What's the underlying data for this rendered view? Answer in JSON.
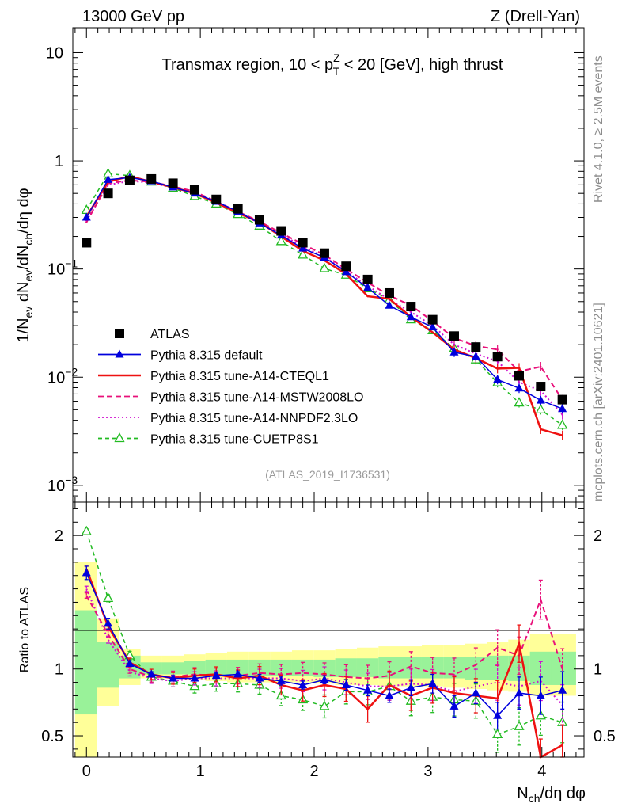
{
  "header": {
    "left": "13000 GeV pp",
    "right": "Z (Drell-Yan)"
  },
  "side_labels": {
    "rivet": "Rivet 4.1.0, ≥ 2.5M events",
    "mcplots": "mcplots.cern.ch [arXiv:2401.10621]"
  },
  "reference": "(ATLAS_2019_I1736531)",
  "colors": {
    "atlas": "#000000",
    "default": "#0000dd",
    "cteql1": "#ee1111",
    "mstw": "#e8107a",
    "nnpdf": "#d010d0",
    "cuetp8s1": "#22bb22",
    "band_inner": "#99f299",
    "band_outer": "#ffff99"
  },
  "chart_data": [
    {
      "panel": "main",
      "type": "line",
      "title": "Transmax region, 10 < p_T^Z < 20 [GeV], high thrust",
      "title_parts": {
        "pre": "Transmax region, 10 < p",
        "sup": "Z",
        "sub": "T",
        "post": " < 20 [GeV], high thrust"
      },
      "xlabel": "N_ch/dη dφ",
      "ylabel": "1/N_ev dN_ev/dN_ch/dη dφ",
      "yscale": "log",
      "xlim": [
        -0.12,
        4.37
      ],
      "ylim": [
        0.0007,
        17
      ],
      "x_ticks": [
        "0",
        "1",
        "2",
        "3",
        "4"
      ],
      "y_ticks": [
        {
          "value": 10,
          "mantissa": "10",
          "exp": ""
        },
        {
          "value": 1,
          "mantissa": "1",
          "exp": ""
        },
        {
          "value": 0.1,
          "mantissa": "10",
          "exp": "−1"
        },
        {
          "value": 0.01,
          "mantissa": "10",
          "exp": "−2"
        },
        {
          "value": 0.001,
          "mantissa": "10",
          "exp": "−3"
        }
      ],
      "x": [
        0,
        0.19,
        0.38,
        0.57,
        0.76,
        0.95,
        1.14,
        1.33,
        1.52,
        1.71,
        1.9,
        2.09,
        2.28,
        2.47,
        2.66,
        2.85,
        3.04,
        3.23,
        3.42,
        3.61,
        3.8,
        3.99,
        4.18
      ],
      "series": [
        {
          "name": "ATLAS",
          "key": "atlas",
          "values": [
            0.175,
            0.5,
            0.66,
            0.68,
            0.62,
            0.54,
            0.44,
            0.36,
            0.285,
            0.225,
            0.175,
            0.14,
            0.106,
            0.08,
            0.06,
            0.045,
            0.034,
            0.024,
            0.019,
            0.0155,
            0.0103,
            0.0082,
            0.0062
          ]
        },
        {
          "name": "Pythia 8.315 default",
          "key": "default",
          "values": [
            0.3,
            0.67,
            0.7,
            0.65,
            0.57,
            0.5,
            0.42,
            0.34,
            0.265,
            0.205,
            0.155,
            0.128,
            0.094,
            0.067,
            0.046,
            0.036,
            0.029,
            0.017,
            0.0155,
            0.0095,
            0.0079,
            0.0061,
            0.0051
          ]
        },
        {
          "name": "Pythia 8.315 tune-A14-CTEQL1",
          "key": "cteql1",
          "values": [
            0.305,
            0.64,
            0.72,
            0.64,
            0.57,
            0.5,
            0.41,
            0.33,
            0.27,
            0.2,
            0.147,
            0.12,
            0.09,
            0.056,
            0.053,
            0.036,
            0.026,
            0.018,
            0.015,
            0.012,
            0.0122,
            0.0033,
            0.0029
          ]
        },
        {
          "name": "Pythia 8.315 tune-A14-MSTW2008LO",
          "key": "mstw",
          "values": [
            0.27,
            0.62,
            0.66,
            0.64,
            0.58,
            0.52,
            0.42,
            0.34,
            0.275,
            0.215,
            0.17,
            0.135,
            0.1,
            0.075,
            0.057,
            0.046,
            0.033,
            0.023,
            0.0195,
            0.018,
            0.0113,
            0.0125,
            0.0062
          ]
        },
        {
          "name": "Pythia 8.315 tune-A14-NNPDF2.3LO",
          "key": "nnpdf",
          "values": [
            0.28,
            0.6,
            0.65,
            0.63,
            0.56,
            0.5,
            0.41,
            0.335,
            0.265,
            0.21,
            0.16,
            0.13,
            0.095,
            0.07,
            0.052,
            0.04,
            0.03,
            0.02,
            0.0165,
            0.014,
            0.009,
            0.0075,
            0.0045
          ]
        },
        {
          "name": "Pythia 8.315 tune-CUETP8S1",
          "key": "cuetp8s1",
          "values": [
            0.35,
            0.76,
            0.73,
            0.64,
            0.56,
            0.47,
            0.4,
            0.32,
            0.25,
            0.18,
            0.135,
            0.101,
            0.088,
            0.066,
            0.052,
            0.034,
            0.027,
            0.0185,
            0.0145,
            0.0089,
            0.0058,
            0.005,
            0.0036
          ]
        }
      ]
    },
    {
      "panel": "ratio",
      "type": "line",
      "ylabel": "Ratio to ATLAS",
      "xlim": [
        -0.12,
        4.37
      ],
      "ylim": [
        0.34,
        2.25
      ],
      "y_ticks": [
        "0.5",
        "1",
        "2"
      ],
      "bins": [
        -0.1,
        0.095,
        0.285,
        0.475,
        0.665,
        0.855,
        1.045,
        1.235,
        1.425,
        1.615,
        1.805,
        1.995,
        2.185,
        2.375,
        2.565,
        2.755,
        2.945,
        3.135,
        3.325,
        3.515,
        3.705,
        3.895,
        4.085,
        4.3
      ],
      "band_inner": [
        [
          0.66,
          1.44
        ],
        [
          0.86,
          1.2
        ],
        [
          0.93,
          1.1
        ],
        [
          0.96,
          1.05
        ],
        [
          0.96,
          1.05
        ],
        [
          0.96,
          1.06
        ],
        [
          0.95,
          1.07
        ],
        [
          0.95,
          1.07
        ],
        [
          0.95,
          1.07
        ],
        [
          0.95,
          1.07
        ],
        [
          0.95,
          1.07
        ],
        [
          0.94,
          1.07
        ],
        [
          0.94,
          1.08
        ],
        [
          0.94,
          1.08
        ],
        [
          0.93,
          1.09
        ],
        [
          0.93,
          1.09
        ],
        [
          0.93,
          1.09
        ],
        [
          0.93,
          1.09
        ],
        [
          0.92,
          1.09
        ],
        [
          0.92,
          1.1
        ],
        [
          0.91,
          1.1
        ],
        [
          0.88,
          1.13
        ],
        [
          0.88,
          1.13
        ]
      ],
      "band_outer": [
        [
          0.3,
          1.8
        ],
        [
          0.72,
          1.38
        ],
        [
          0.88,
          1.15
        ],
        [
          0.93,
          1.1
        ],
        [
          0.93,
          1.1
        ],
        [
          0.92,
          1.11
        ],
        [
          0.91,
          1.12
        ],
        [
          0.9,
          1.13
        ],
        [
          0.9,
          1.13
        ],
        [
          0.9,
          1.13
        ],
        [
          0.9,
          1.14
        ],
        [
          0.89,
          1.14
        ],
        [
          0.88,
          1.15
        ],
        [
          0.88,
          1.16
        ],
        [
          0.87,
          1.17
        ],
        [
          0.87,
          1.17
        ],
        [
          0.87,
          1.18
        ],
        [
          0.86,
          1.18
        ],
        [
          0.85,
          1.19
        ],
        [
          0.84,
          1.2
        ],
        [
          0.83,
          1.22
        ],
        [
          0.8,
          1.26
        ],
        [
          0.8,
          1.26
        ]
      ],
      "x": [
        0,
        0.19,
        0.38,
        0.57,
        0.76,
        0.95,
        1.14,
        1.33,
        1.52,
        1.71,
        1.9,
        2.09,
        2.28,
        2.47,
        2.66,
        2.85,
        3.04,
        3.23,
        3.42,
        3.61,
        3.8,
        3.99,
        4.18
      ],
      "series": [
        {
          "name": "Pythia 8.315 default",
          "key": "default",
          "values": [
            1.72,
            1.34,
            1.04,
            0.96,
            0.93,
            0.93,
            0.95,
            0.96,
            0.93,
            0.91,
            0.88,
            0.92,
            0.88,
            0.84,
            0.8,
            0.86,
            0.89,
            0.72,
            0.82,
            0.65,
            0.82,
            0.8,
            0.84
          ],
          "err": [
            0.05,
            0.04,
            0.02,
            0.02,
            0.02,
            0.02,
            0.02,
            0.02,
            0.03,
            0.03,
            0.03,
            0.03,
            0.04,
            0.04,
            0.05,
            0.06,
            0.07,
            0.08,
            0.08,
            0.1,
            0.12,
            0.14,
            0.14
          ]
        },
        {
          "name": "Pythia 8.315 tune-A14-CTEQL1",
          "key": "cteql1",
          "values": [
            1.75,
            1.32,
            1.05,
            0.96,
            0.93,
            0.95,
            0.96,
            0.93,
            0.95,
            0.88,
            0.84,
            0.88,
            0.85,
            0.7,
            0.88,
            0.8,
            0.86,
            0.82,
            0.8,
            0.78,
            1.19,
            0.33,
            0.43
          ]
        },
        {
          "name": "Pythia 8.315 tune-A14-MSTW2008LO",
          "key": "mstw",
          "values": [
            1.55,
            1.26,
            1.0,
            0.94,
            0.94,
            0.96,
            0.95,
            0.95,
            0.97,
            0.96,
            0.97,
            0.96,
            0.94,
            0.93,
            0.95,
            1.02,
            0.97,
            0.96,
            1.03,
            1.16,
            1.1,
            1.52,
            1.0
          ]
        },
        {
          "name": "Pythia 8.315 tune-A14-NNPDF2.3LO",
          "key": "nnpdf",
          "values": [
            1.6,
            1.22,
            0.98,
            0.93,
            0.91,
            0.93,
            0.93,
            0.93,
            0.93,
            0.93,
            0.91,
            0.93,
            0.9,
            0.87,
            0.87,
            0.89,
            0.88,
            0.83,
            0.87,
            0.9,
            0.87,
            0.91,
            0.73
          ]
        },
        {
          "name": "Pythia 8.315 tune-CUETP8S1",
          "key": "cuetp8s1",
          "values": [
            2.03,
            1.53,
            1.1,
            0.94,
            0.91,
            0.87,
            0.89,
            0.89,
            0.88,
            0.8,
            0.77,
            0.72,
            0.83,
            0.83,
            0.87,
            0.76,
            0.79,
            0.77,
            0.76,
            0.51,
            0.57,
            0.65,
            0.6
          ]
        }
      ]
    }
  ],
  "legend": [
    {
      "label": "ATLAS",
      "key": "atlas",
      "marker": "square",
      "dash": ""
    },
    {
      "label": "Pythia 8.315 default",
      "key": "default",
      "marker": "triangle",
      "dash": ""
    },
    {
      "label": "Pythia 8.315 tune-A14-CTEQL1",
      "key": "cteql1",
      "marker": "",
      "dash": ""
    },
    {
      "label": "Pythia 8.315 tune-A14-MSTW2008LO",
      "key": "mstw",
      "marker": "",
      "dash": "7,4"
    },
    {
      "label": "Pythia 8.315 tune-A14-NNPDF2.3LO",
      "key": "nnpdf",
      "marker": "",
      "dash": "2,3"
    },
    {
      "label": "Pythia 8.315 tune-CUETP8S1",
      "key": "cuetp8s1",
      "marker": "triangle-open",
      "dash": "5,4"
    }
  ]
}
